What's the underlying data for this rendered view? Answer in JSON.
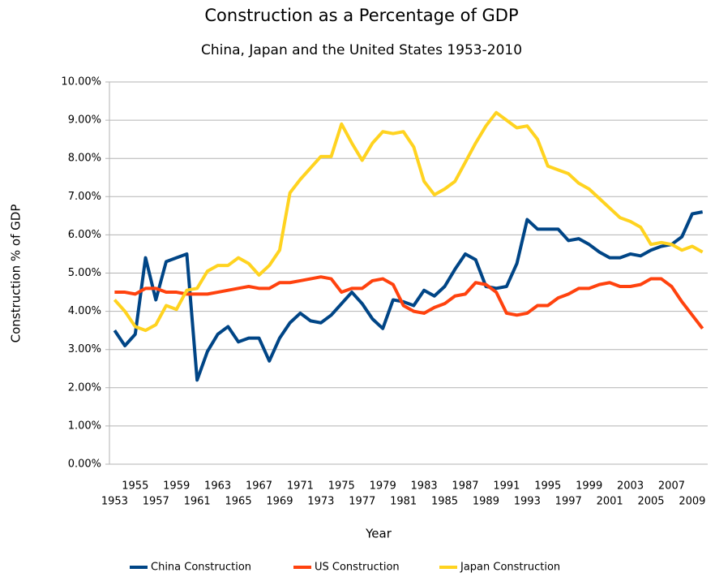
{
  "chart_data": {
    "type": "line",
    "title": "Construction as a Percentage of GDP",
    "subtitle": "China, Japan and the United States 1953-2010",
    "x_label": "Year",
    "y_label": "Construction % of GDP",
    "categories": [
      "1953",
      null,
      "1955",
      null,
      "1957",
      null,
      "1959",
      null,
      "1961",
      null,
      "1963",
      null,
      "1965",
      null,
      "1967",
      null,
      "1969",
      null,
      "1971",
      null,
      "1973",
      null,
      "1975",
      null,
      "1977",
      null,
      "1979",
      null,
      "1981",
      null,
      "1983",
      null,
      "1985",
      null,
      "1987",
      null,
      "1989",
      null,
      "1991",
      null,
      "1993",
      null,
      "1995",
      null,
      "1997",
      null,
      "1999",
      null,
      "2001",
      null,
      "2003",
      null,
      "2005",
      null,
      "2007",
      null,
      "2009",
      null
    ],
    "series": [
      {
        "name": "China Construction",
        "color": "#004586",
        "values": [
          3.5,
          3.1,
          3.4,
          5.4,
          4.3,
          5.3,
          5.4,
          5.5,
          2.2,
          2.95,
          3.4,
          3.6,
          3.2,
          3.3,
          3.3,
          2.7,
          3.3,
          3.7,
          3.95,
          3.75,
          3.7,
          3.9,
          4.2,
          4.5,
          4.2,
          3.8,
          3.55,
          4.3,
          4.25,
          4.15,
          4.55,
          4.4,
          4.65,
          5.1,
          5.5,
          5.35,
          4.65,
          4.6,
          4.65,
          5.25,
          6.4,
          6.15,
          6.15,
          6.15,
          5.85,
          5.9,
          5.75,
          5.55,
          5.4,
          5.4,
          5.5,
          5.45,
          5.6,
          5.7,
          5.75,
          5.95,
          6.55,
          6.6
        ]
      },
      {
        "name": "US Construction",
        "color": "#ff420e",
        "values": [
          4.5,
          4.5,
          4.45,
          4.6,
          4.6,
          4.5,
          4.5,
          4.45,
          4.45,
          4.45,
          4.5,
          4.55,
          4.6,
          4.65,
          4.6,
          4.6,
          4.75,
          4.75,
          4.8,
          4.85,
          4.9,
          4.85,
          4.5,
          4.6,
          4.6,
          4.8,
          4.85,
          4.7,
          4.15,
          4.0,
          3.95,
          4.1,
          4.2,
          4.4,
          4.45,
          4.75,
          4.7,
          4.5,
          3.95,
          3.9,
          3.95,
          4.15,
          4.15,
          4.35,
          4.45,
          4.6,
          4.6,
          4.7,
          4.75,
          4.65,
          4.65,
          4.7,
          4.85,
          4.85,
          4.65,
          4.25,
          3.9,
          3.55
        ]
      },
      {
        "name": "Japan Construction",
        "color": "#ffd320",
        "values": [
          4.3,
          4.0,
          3.6,
          3.5,
          3.65,
          4.15,
          4.05,
          4.55,
          4.6,
          5.05,
          5.2,
          5.2,
          5.4,
          5.25,
          4.95,
          5.2,
          5.6,
          7.1,
          7.45,
          7.75,
          8.05,
          8.05,
          8.9,
          8.4,
          7.95,
          8.4,
          8.7,
          8.65,
          8.7,
          8.3,
          7.4,
          7.05,
          7.2,
          7.4,
          7.9,
          8.4,
          8.85,
          9.2,
          9.0,
          8.8,
          8.85,
          8.5,
          7.8,
          7.7,
          7.6,
          7.35,
          7.2,
          6.95,
          6.7,
          6.45,
          6.35,
          6.2,
          5.75,
          5.8,
          5.75,
          5.6,
          5.7,
          5.55
        ]
      }
    ],
    "ylim": [
      0,
      10
    ],
    "yticks": [
      {
        "value": 0,
        "label": "0.00%"
      },
      {
        "value": 1,
        "label": "1.00%"
      },
      {
        "value": 2,
        "label": "2.00%"
      },
      {
        "value": 3,
        "label": "3.00%"
      },
      {
        "value": 4,
        "label": "4.00%"
      },
      {
        "value": 5,
        "label": "5.00%"
      },
      {
        "value": 6,
        "label": "6.00%"
      },
      {
        "value": 7,
        "label": "7.00%"
      },
      {
        "value": 8,
        "label": "8.00%"
      },
      {
        "value": 9,
        "label": "9.00%"
      },
      {
        "value": 10,
        "label": "10.00%"
      }
    ],
    "grid": true,
    "legend": "bottom"
  }
}
